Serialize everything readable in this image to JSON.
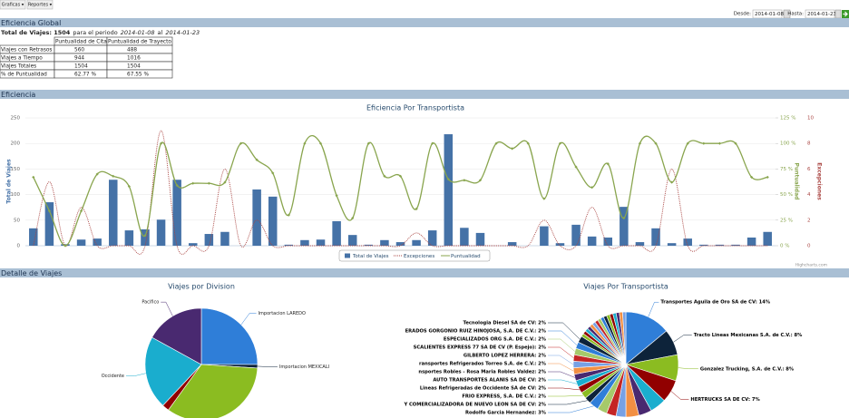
{
  "toolbar": {
    "buttons": [
      "Graficas ▾",
      "Reportes ▾"
    ]
  },
  "filters": {
    "from_label": "Desde:",
    "from": "2014-01-08",
    "to_label": "Hasta:",
    "to": "2014-01-23"
  },
  "sections": [
    "Eficiencia Global",
    "Eficiencia",
    "Detalle de Viajes"
  ],
  "summary": {
    "total": "Total de Viajes: 1504",
    "period": "para el periodo",
    "from": "2014-01-08",
    "sep": "al",
    "to": "2014-01-23"
  },
  "table": {
    "header": [
      "Puntualidad de Cita",
      "Puntualidad de Trayecto"
    ],
    "rows": [
      [
        "Viajes con Retrasos",
        560,
        488
      ],
      [
        "Viajes a Tiempo",
        944,
        1016
      ],
      [
        "Viajes Totales",
        1504,
        1504
      ],
      [
        "% de Puntualidad",
        "62.77 %",
        "67.55 %"
      ]
    ]
  },
  "chart_data": [
    {
      "type": "combo",
      "title": "Eficiencia Por Transportista",
      "ylabel": "Total de Viajes",
      "y2label": "Puntualidad",
      "y3label": "Excepciones",
      "credit": "Highcharts.com",
      "ylim": [
        0,
        250
      ],
      "yticks": [
        0,
        50,
        100,
        150,
        200,
        250
      ],
      "y2lim": [
        0,
        125
      ],
      "y2ticks": [
        {
          "value": 0,
          "label": "0 %"
        },
        {
          "value": 25,
          "label": "25 %"
        },
        {
          "value": 50,
          "label": "50 %"
        },
        {
          "value": 75,
          "label": "75 %"
        },
        {
          "value": 100,
          "label": "100 %"
        },
        {
          "value": 125,
          "label": "125 %"
        }
      ],
      "y3lim": [
        0,
        10
      ],
      "y3ticks": [
        0,
        2,
        4,
        6,
        8,
        10
      ],
      "grid": true,
      "series": [
        {
          "name": "Total de Viajes",
          "color": "#4572a7",
          "values": [
            34,
            85,
            3,
            12,
            14,
            129,
            30,
            32,
            51,
            129,
            5,
            23,
            27,
            0,
            110,
            96,
            2,
            11,
            12,
            48,
            21,
            2,
            11,
            7,
            11,
            30,
            218,
            35,
            25,
            0,
            7,
            0,
            38,
            5,
            41,
            18,
            16,
            76,
            7,
            34,
            5,
            14,
            2,
            2,
            2,
            16,
            27
          ]
        },
        {
          "name": "Excepciones",
          "color": "#aa4643",
          "axis": "y3",
          "values": [
            0,
            5,
            0,
            3,
            0,
            0,
            0,
            0,
            9,
            0,
            0,
            0,
            6,
            0,
            2,
            0,
            0,
            0,
            0,
            0,
            0,
            0,
            0,
            0,
            1,
            0,
            0,
            0,
            0,
            0,
            0,
            0,
            2,
            0,
            0,
            3,
            0,
            0,
            0,
            0,
            6,
            0,
            0,
            0,
            0,
            0,
            0
          ]
        },
        {
          "name": "Puntualidad",
          "color": "#89a54e",
          "axis": "y2",
          "values": [
            67,
            34,
            0,
            34,
            70,
            68,
            58,
            10,
            100,
            59,
            61,
            61,
            62,
            100,
            84,
            71,
            30,
            100,
            100,
            49,
            27,
            100,
            68,
            68,
            36,
            100,
            65,
            64,
            64,
            100,
            95,
            100,
            46,
            100,
            77,
            57,
            80,
            27,
            100,
            100,
            62,
            100,
            100,
            100,
            100,
            67,
            67
          ]
        }
      ]
    },
    {
      "type": "pie",
      "title": "Viajes por Division",
      "categories": [
        "Importacion LAREDO",
        "Importacion MEXICALI",
        null,
        null,
        "Occidente",
        "Pacifico"
      ],
      "values": [
        25,
        1,
        34,
        2,
        21,
        17
      ],
      "colors": [
        "#2f7ed8",
        "#0d233a",
        "#8bbc21",
        "#910000",
        "#1aadce",
        "#492970"
      ]
    },
    {
      "type": "pie",
      "title": "Viajes Por Transportista",
      "values": [
        14,
        8,
        8,
        7,
        5,
        4,
        4,
        3,
        3,
        3,
        3,
        2,
        2,
        2,
        2,
        2,
        2,
        2,
        2,
        2,
        2,
        2,
        1,
        1,
        1,
        1,
        1,
        1,
        1,
        1,
        1,
        1,
        1,
        1,
        1,
        1,
        1,
        1
      ],
      "value_labels": [
        "Transportes Aguila de Oro SA de CV: 14%",
        "Tracto Lineas Mexicanas S.A. de C.V.: 8%",
        "Gonzalez Trucking, S.A. de C.V.: 8%",
        "HERTRUCKS SA DE CV: 7%",
        null,
        null,
        null,
        null,
        null,
        null,
        "Rodolfo Garcia Hernandez: 3%",
        "Y COMERCIALIZADORA DE NUEVO LEON SA DE CV: 2%",
        "FRIO EXPRESS, S.A. DE C.V.: 2%",
        "Lineas Refrigeradas de Occidente SA de CV: 2%",
        "AUTO TRANSPORTES ALANIS SA DE CV: 2%",
        "nsportes Robles - Rosa Maria Robles Valdez: 2%",
        "ransportes Refrigerados Torreo S.A. de C.V.: 2%",
        "GILBERTO LOPEZ HERRERA: 2%",
        "SCALIENTES EXPRESS 77 SA DE CV (P. Espejo): 2%",
        "ESPECIALIZADOS ORG S.A. DE C.V.: 2%",
        "ERADOS GORGONIO RUIZ HINOJOSA, S.A. DE C.V.: 2%",
        "Tecnologia Diesel SA de CV: 2%",
        null,
        null,
        null,
        null,
        null,
        null,
        null,
        null,
        null,
        null,
        null,
        null,
        null,
        null,
        null,
        null
      ],
      "colors": [
        "#2f7ed8",
        "#0d233a",
        "#8bbc21",
        "#910000",
        "#1aadce",
        "#492970",
        "#f28f43",
        "#77a1e5",
        "#c42525",
        "#a6c96a"
      ]
    }
  ]
}
